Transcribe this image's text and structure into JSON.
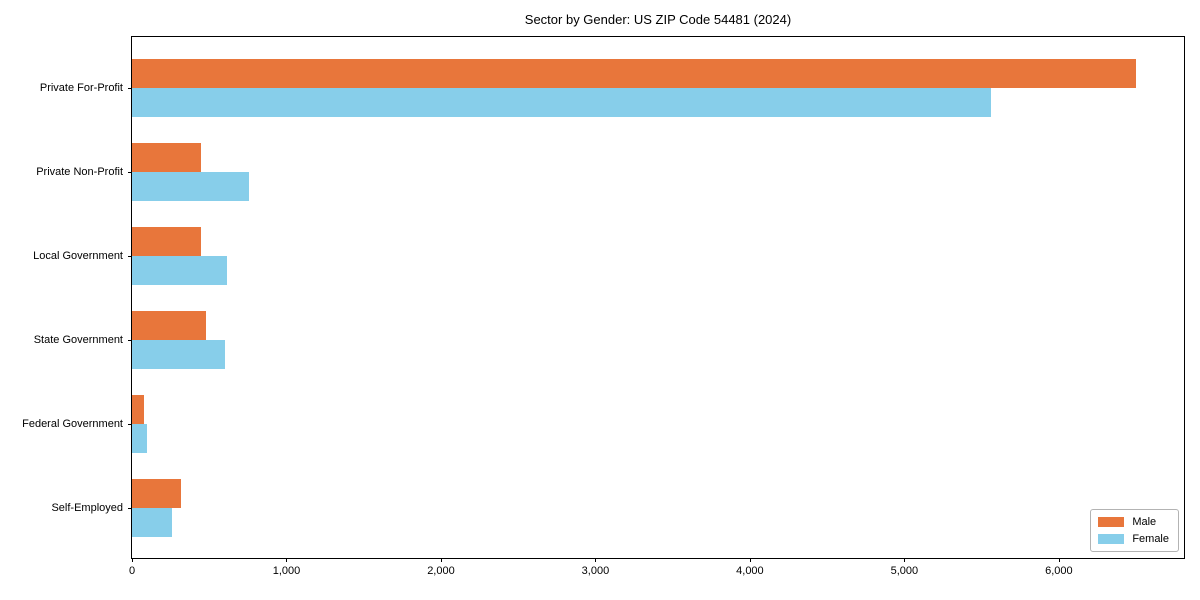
{
  "title": "Sector by Gender: US ZIP Code 54481 (2024)",
  "chart_data": {
    "type": "bar",
    "orientation": "horizontal",
    "title": "Sector by Gender: US ZIP Code 54481 (2024)",
    "categories": [
      "Private For-Profit",
      "Private Non-Profit",
      "Local Government",
      "State Government",
      "Federal Government",
      "Self-Employed"
    ],
    "series": [
      {
        "name": "Male",
        "color": "#E8763B",
        "values": [
          6500,
          445,
          445,
          480,
          75,
          315
        ]
      },
      {
        "name": "Female",
        "color": "#87CEEA",
        "values": [
          5560,
          755,
          615,
          600,
          95,
          260
        ]
      }
    ],
    "xlabel": "",
    "ylabel": "",
    "xlim": [
      0,
      6810
    ],
    "x_ticks": [
      0,
      1000,
      2000,
      3000,
      4000,
      5000,
      6000
    ],
    "x_tick_labels": [
      "0",
      "1,000",
      "2,000",
      "3,000",
      "4,000",
      "5,000",
      "6,000"
    ],
    "grid": false,
    "legend": {
      "position": "lower-right"
    },
    "colors": {
      "background": "#ffffff",
      "spine": "#000000",
      "legend_border": "#b3b3b3"
    }
  }
}
